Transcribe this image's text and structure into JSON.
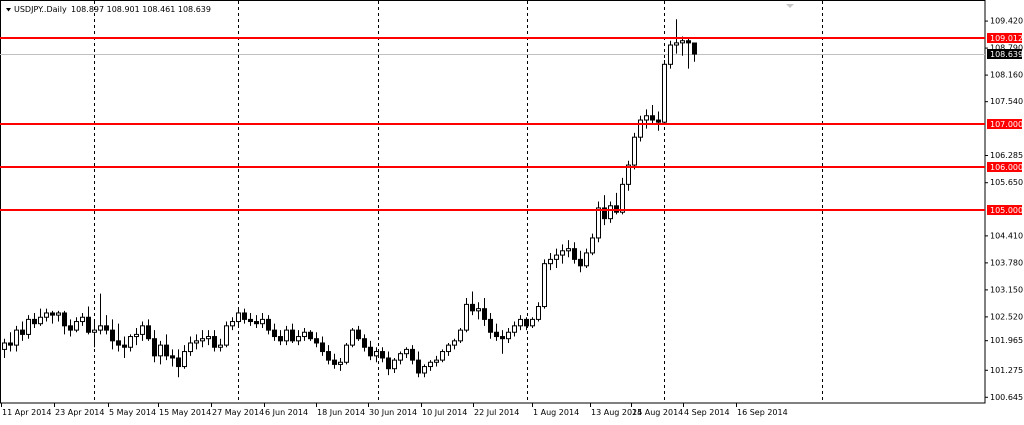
{
  "header": {
    "symbol": "USDJPY..Daily",
    "ohlc": "108.897 108.901 108.461 108.639"
  },
  "chart_data": {
    "type": "candlestick",
    "symbol": "USDJPY",
    "timeframe": "Daily",
    "ylim": [
      100.5,
      109.9
    ],
    "y_ticks": [
      100.645,
      101.275,
      101.965,
      102.52,
      103.15,
      103.78,
      104.41,
      105.65,
      106.285,
      107.54,
      108.16,
      108.79,
      109.42
    ],
    "y_tick_labels": [
      "100.645",
      "101.275",
      "101.965",
      "102.520",
      "103.150",
      "103.780",
      "104.410",
      "105.650",
      "106.285",
      "107.540",
      "108.160",
      "108.790",
      "109.420"
    ],
    "x_tick_labels": [
      "11 Apr 2014",
      "23 Apr 2014",
      "5 May 2014",
      "15 May 2014",
      "27 May 2014",
      "6 Jun 2014",
      "18 Jun 2014",
      "30 Jun 2014",
      "10 Jul 2014",
      "22 Jul 2014",
      "1 Aug 2014",
      "13 Aug 2014",
      "25 Aug 2014",
      "4 Sep 2014",
      "16 Sep 2014"
    ],
    "levels": [
      {
        "label": "109.012",
        "value": 109.012,
        "color": "#ff0000"
      },
      {
        "label": "107.000",
        "value": 107.0,
        "color": "#ff0000"
      },
      {
        "label": "106.000",
        "value": 106.0,
        "color": "#ff0000"
      },
      {
        "label": "105.000",
        "value": 105.0,
        "color": "#ff0000"
      }
    ],
    "current_price": {
      "label": "108.639",
      "value": 108.639
    },
    "candles": [
      [
        101.75,
        102.0,
        101.55,
        101.9
      ],
      [
        101.9,
        102.15,
        101.7,
        101.85
      ],
      [
        101.85,
        102.3,
        101.7,
        102.2
      ],
      [
        102.2,
        102.4,
        101.95,
        102.1
      ],
      [
        102.1,
        102.55,
        102.0,
        102.45
      ],
      [
        102.45,
        102.6,
        102.25,
        102.35
      ],
      [
        102.35,
        102.7,
        102.3,
        102.5
      ],
      [
        102.5,
        102.7,
        102.4,
        102.6
      ],
      [
        102.6,
        102.65,
        102.35,
        102.55
      ],
      [
        102.55,
        102.65,
        102.4,
        102.6
      ],
      [
        102.6,
        102.65,
        102.1,
        102.3
      ],
      [
        102.3,
        102.45,
        102.05,
        102.2
      ],
      [
        102.2,
        102.5,
        102.15,
        102.4
      ],
      [
        102.4,
        102.6,
        102.3,
        102.5
      ],
      [
        102.5,
        102.75,
        102.1,
        102.15
      ],
      [
        102.15,
        102.4,
        101.8,
        102.2
      ],
      [
        102.2,
        103.05,
        102.1,
        102.3
      ],
      [
        102.3,
        102.55,
        102.1,
        102.2
      ],
      [
        102.2,
        102.45,
        101.75,
        101.95
      ],
      [
        101.95,
        102.35,
        101.7,
        101.85
      ],
      [
        101.85,
        102.05,
        101.55,
        101.8
      ],
      [
        101.8,
        102.1,
        101.7,
        102.05
      ],
      [
        102.05,
        102.25,
        101.85,
        102.1
      ],
      [
        102.1,
        102.4,
        101.95,
        102.3
      ],
      [
        102.3,
        102.45,
        101.95,
        102.0
      ],
      [
        102.0,
        102.2,
        101.45,
        101.6
      ],
      [
        101.6,
        101.95,
        101.4,
        101.85
      ],
      [
        101.85,
        102.1,
        101.5,
        101.6
      ],
      [
        101.6,
        101.75,
        101.35,
        101.55
      ],
      [
        101.55,
        101.75,
        101.1,
        101.35
      ],
      [
        101.35,
        101.85,
        101.3,
        101.7
      ],
      [
        101.7,
        102.05,
        101.6,
        101.9
      ],
      [
        101.9,
        102.1,
        101.75,
        101.95
      ],
      [
        101.95,
        102.2,
        101.8,
        102.0
      ],
      [
        102.0,
        102.2,
        101.85,
        102.05
      ],
      [
        102.05,
        102.2,
        101.7,
        101.8
      ],
      [
        101.8,
        102.0,
        101.7,
        101.85
      ],
      [
        101.85,
        102.4,
        101.8,
        102.3
      ],
      [
        102.3,
        102.5,
        102.2,
        102.4
      ],
      [
        102.4,
        102.7,
        102.3,
        102.6
      ],
      [
        102.6,
        102.7,
        102.35,
        102.45
      ],
      [
        102.45,
        102.6,
        102.3,
        102.4
      ],
      [
        102.4,
        102.55,
        102.25,
        102.35
      ],
      [
        102.35,
        102.6,
        102.25,
        102.45
      ],
      [
        102.45,
        102.55,
        102.1,
        102.2
      ],
      [
        102.2,
        102.35,
        101.95,
        102.05
      ],
      [
        102.05,
        102.2,
        101.85,
        101.95
      ],
      [
        101.95,
        102.3,
        101.85,
        102.2
      ],
      [
        102.2,
        102.35,
        101.9,
        101.95
      ],
      [
        101.95,
        102.2,
        101.85,
        102.05
      ],
      [
        102.05,
        102.25,
        101.95,
        102.15
      ],
      [
        102.15,
        102.2,
        101.95,
        102.0
      ],
      [
        102.0,
        102.15,
        101.8,
        101.9
      ],
      [
        101.9,
        102.05,
        101.6,
        101.7
      ],
      [
        101.7,
        101.85,
        101.4,
        101.5
      ],
      [
        101.5,
        101.65,
        101.3,
        101.4
      ],
      [
        101.4,
        101.55,
        101.25,
        101.45
      ],
      [
        101.45,
        101.9,
        101.4,
        101.85
      ],
      [
        101.85,
        102.25,
        101.8,
        102.2
      ],
      [
        102.2,
        102.3,
        101.95,
        102.0
      ],
      [
        102.0,
        102.1,
        101.7,
        101.8
      ],
      [
        101.8,
        101.95,
        101.5,
        101.6
      ],
      [
        101.6,
        101.8,
        101.45,
        101.7
      ],
      [
        101.7,
        101.8,
        101.45,
        101.55
      ],
      [
        101.55,
        101.7,
        101.15,
        101.3
      ],
      [
        101.3,
        101.55,
        101.2,
        101.5
      ],
      [
        101.5,
        101.7,
        101.4,
        101.65
      ],
      [
        101.65,
        101.8,
        101.55,
        101.75
      ],
      [
        101.75,
        101.85,
        101.4,
        101.5
      ],
      [
        101.5,
        101.7,
        101.1,
        101.2
      ],
      [
        101.2,
        101.4,
        101.1,
        101.35
      ],
      [
        101.35,
        101.5,
        101.25,
        101.45
      ],
      [
        101.45,
        101.6,
        101.35,
        101.5
      ],
      [
        101.5,
        101.75,
        101.45,
        101.7
      ],
      [
        101.7,
        101.9,
        101.6,
        101.85
      ],
      [
        101.85,
        102.0,
        101.75,
        101.95
      ],
      [
        101.95,
        102.25,
        101.9,
        102.2
      ],
      [
        102.2,
        102.95,
        102.15,
        102.8
      ],
      [
        102.8,
        103.1,
        102.55,
        102.65
      ],
      [
        102.65,
        102.85,
        102.45,
        102.7
      ],
      [
        102.7,
        102.95,
        102.3,
        102.45
      ],
      [
        102.45,
        102.6,
        102.0,
        102.15
      ],
      [
        102.15,
        102.35,
        101.95,
        102.05
      ],
      [
        102.05,
        102.2,
        101.65,
        102.0
      ],
      [
        102.0,
        102.25,
        101.9,
        102.15
      ],
      [
        102.15,
        102.4,
        102.05,
        102.3
      ],
      [
        102.3,
        102.55,
        102.2,
        102.45
      ],
      [
        102.45,
        102.5,
        102.2,
        102.3
      ],
      [
        102.3,
        102.5,
        102.25,
        102.45
      ],
      [
        102.45,
        102.85,
        102.4,
        102.75
      ],
      [
        102.75,
        103.85,
        102.7,
        103.75
      ],
      [
        103.75,
        104.0,
        103.6,
        103.85
      ],
      [
        103.85,
        104.1,
        103.65,
        103.95
      ],
      [
        103.95,
        104.2,
        103.75,
        104.05
      ],
      [
        104.05,
        104.3,
        103.9,
        104.1
      ],
      [
        104.1,
        104.25,
        103.75,
        103.85
      ],
      [
        103.85,
        104.05,
        103.55,
        103.7
      ],
      [
        103.7,
        104.1,
        103.65,
        104.0
      ],
      [
        104.0,
        104.45,
        103.95,
        104.35
      ],
      [
        104.35,
        105.2,
        104.25,
        105.05
      ],
      [
        105.05,
        105.35,
        104.65,
        104.8
      ],
      [
        104.8,
        105.2,
        104.7,
        105.1
      ],
      [
        105.1,
        105.4,
        104.9,
        104.95
      ],
      [
        104.95,
        105.75,
        104.9,
        105.6
      ],
      [
        105.6,
        106.15,
        105.45,
        106.05
      ],
      [
        106.05,
        106.8,
        105.95,
        106.7
      ],
      [
        106.7,
        107.2,
        106.6,
        107.1
      ],
      [
        107.1,
        107.35,
        106.9,
        107.2
      ],
      [
        107.2,
        107.45,
        107.0,
        107.1
      ],
      [
        107.1,
        107.3,
        106.85,
        107.05
      ],
      [
        107.05,
        108.5,
        107.0,
        108.4
      ],
      [
        108.4,
        108.95,
        108.3,
        108.85
      ],
      [
        108.85,
        109.45,
        108.65,
        108.9
      ],
      [
        108.9,
        109.05,
        108.6,
        108.95
      ],
      [
        108.95,
        109.0,
        108.3,
        108.9
      ],
      [
        108.897,
        108.901,
        108.461,
        108.639
      ]
    ]
  }
}
